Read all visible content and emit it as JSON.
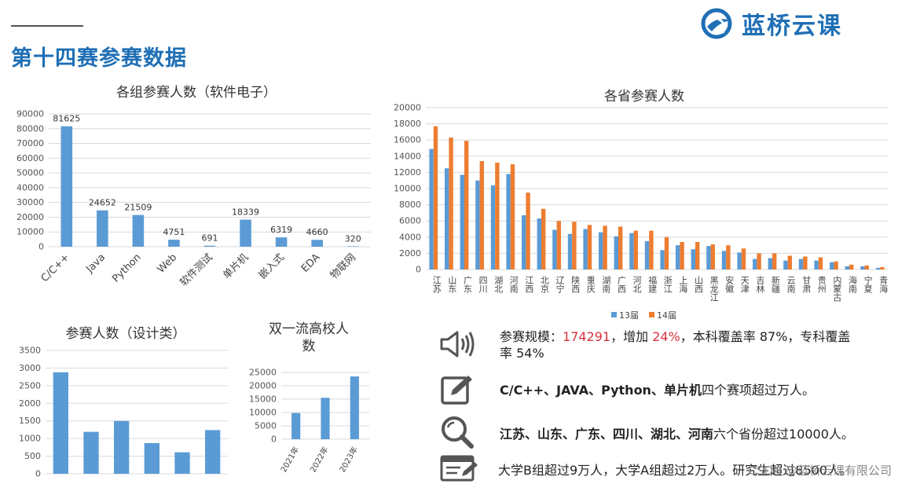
{
  "header": {
    "title": "第十四赛参赛数据",
    "brand_name": "蓝桥云课"
  },
  "colors": {
    "accent": "#1f6fb5",
    "bar_blue": "#5b9bd5",
    "bar_orange": "#ed7d31",
    "highlight_red": "#d9333f"
  },
  "chart_data": [
    {
      "id": "groups",
      "type": "bar",
      "title": "各组参赛人数（软件电子）",
      "categories": [
        "C/C++",
        "Java",
        "Python",
        "Web",
        "软件测试",
        "单片机",
        "嵌入式",
        "EDA",
        "物联网"
      ],
      "values": [
        81625,
        24652,
        21509,
        4751,
        691,
        18339,
        6319,
        4660,
        320
      ],
      "data_labels": [
        "81625",
        "24652",
        "21509",
        "4751",
        "691",
        "18339",
        "6319",
        "4660",
        "320"
      ],
      "ylim": [
        0,
        90000
      ],
      "yticks": [
        0,
        10000,
        20000,
        30000,
        40000,
        50000,
        60000,
        70000,
        80000,
        90000
      ],
      "grid": true
    },
    {
      "id": "provinces",
      "type": "bar",
      "title": "各省参赛人数",
      "categories": [
        "江苏",
        "山东",
        "广东",
        "四川",
        "湖北",
        "河南",
        "江西",
        "北京",
        "辽宁",
        "陕西",
        "重庆",
        "湖南",
        "广西",
        "河北",
        "福建",
        "浙江",
        "上海",
        "山西",
        "黑龙江",
        "安徽",
        "天津",
        "吉林",
        "新疆",
        "云南",
        "甘肃",
        "贵州",
        "内蒙古",
        "海南",
        "宁夏",
        "青海"
      ],
      "series": [
        {
          "name": "13届",
          "values": [
            14900,
            12500,
            11700,
            11000,
            10400,
            11800,
            6700,
            6300,
            4900,
            4400,
            5000,
            4600,
            4100,
            4500,
            3500,
            2400,
            3000,
            2500,
            2900,
            2300,
            2100,
            1300,
            1400,
            1100,
            1300,
            1100,
            900,
            400,
            400,
            200
          ]
        },
        {
          "name": "14届",
          "values": [
            17700,
            16300,
            15900,
            13400,
            13200,
            13000,
            9500,
            7500,
            6000,
            5900,
            5500,
            5400,
            5300,
            4800,
            4800,
            4000,
            3400,
            3400,
            3100,
            3000,
            2600,
            2000,
            2000,
            1700,
            1600,
            1500,
            1000,
            600,
            500,
            300
          ]
        }
      ],
      "ylim": [
        0,
        20000
      ],
      "yticks": [
        0,
        2000,
        4000,
        6000,
        8000,
        10000,
        12000,
        14000,
        16000,
        18000,
        20000
      ],
      "legend": "bottom",
      "grid": true
    },
    {
      "id": "design",
      "type": "bar",
      "title": "参赛人数（设计类）",
      "categories": [
        "",
        "",
        "",
        "",
        "",
        ""
      ],
      "values": [
        2880,
        1190,
        1500,
        870,
        610,
        1240
      ],
      "ylim": [
        0,
        3500
      ],
      "yticks": [
        0,
        500,
        1000,
        1500,
        2000,
        2500,
        3000,
        3500
      ],
      "grid": true
    },
    {
      "id": "universities",
      "type": "bar",
      "title_lines": [
        "双一流高校人",
        "数"
      ],
      "categories": [
        "2021年",
        "2022年",
        "2023年"
      ],
      "values": [
        9800,
        15500,
        23500
      ],
      "ylim": [
        0,
        25000
      ],
      "yticks": [
        0,
        5000,
        10000,
        15000,
        20000,
        25000
      ],
      "grid": true
    }
  ],
  "bullets": {
    "scale_prefix": "参赛规模：",
    "scale_total": "174291",
    "scale_mid": "，增加 ",
    "scale_increase": "24%",
    "scale_suffix": "，本科覆盖率 87%，专科覆盖率 54%",
    "tracks_bold": "C/C++、JAVA、Python、单片机",
    "tracks_rest": "四个赛项超过万人。",
    "provinces_bold": "江苏、山东、广东、四川、湖北、河南",
    "provinces_rest": "六个省份超过10000人。",
    "groups_text": "大学B组超过9万人，大学A组超过2万人。研究生超过8500人。"
  },
  "icons": {
    "b1": "speaker-icon",
    "b2": "edit-icon",
    "b3": "magnifier-icon",
    "b4": "document-pen-icon"
  },
  "watermark": "CSDN @蓝桥云课有限公司"
}
